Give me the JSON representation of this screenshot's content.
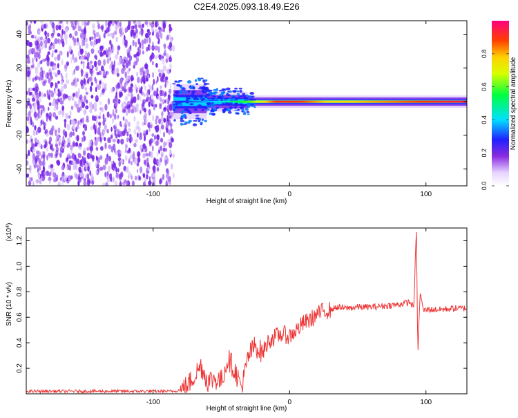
{
  "title": "C2E4.2025.093.18.49.E26",
  "chart_data": [
    {
      "type": "heatmap",
      "xlabel": "Height of straight line (km)",
      "ylabel": "Frequency (Hz)",
      "xlim": [
        -193,
        130
      ],
      "ylim": [
        -50,
        48
      ],
      "x_ticks": [
        -100,
        0,
        100
      ],
      "y_ticks": [
        -40,
        -20,
        0,
        20,
        40
      ],
      "colorbar": {
        "label": "Normalized spectral amplitude",
        "range": [
          0,
          1
        ],
        "ticks": [
          "0.0",
          "0.2",
          "0.4",
          "0.6",
          "0.8"
        ]
      },
      "features": [
        {
          "kind": "noise-field",
          "x_range": [
            -193,
            -85
          ],
          "amplitude": 0.1
        },
        {
          "kind": "ridge",
          "freq_hz": 0,
          "x_range": [
            -85,
            130
          ],
          "amplitude_ramp": [
            [
              -85,
              0.25
            ],
            [
              -55,
              0.4
            ],
            [
              -30,
              0.6
            ],
            [
              -10,
              0.9
            ],
            [
              5,
              0.9
            ],
            [
              30,
              0.75
            ],
            [
              130,
              0.95
            ]
          ]
        }
      ]
    },
    {
      "type": "line",
      "xlabel": "Height of straight line (km)",
      "ylabel": "SNR (10 * v/v)",
      "y_multiplier": "(x10^4)",
      "xlim": [
        -193,
        130
      ],
      "ylim": [
        0,
        1.3
      ],
      "x_ticks": [
        -100,
        0,
        100
      ],
      "y_ticks": [
        "0.2",
        "0.4",
        "0.6",
        "0.8",
        "1.0",
        "1.2"
      ],
      "series": [
        {
          "color": "#ee3333",
          "x": [
            -193,
            -150,
            -100,
            -85,
            -80,
            -75,
            -70,
            -65,
            -60,
            -55,
            -50,
            -45,
            -40,
            -35,
            -30,
            -25,
            -20,
            -15,
            -10,
            -5,
            0,
            5,
            10,
            15,
            20,
            25,
            30,
            35,
            40,
            50,
            60,
            70,
            80,
            88,
            91,
            93,
            94,
            95,
            96,
            98,
            100,
            110,
            120,
            130
          ],
          "y": [
            0.02,
            0.02,
            0.02,
            0.02,
            0.03,
            0.06,
            0.14,
            0.22,
            0.1,
            0.12,
            0.1,
            0.28,
            0.18,
            0.05,
            0.3,
            0.38,
            0.32,
            0.42,
            0.45,
            0.47,
            0.45,
            0.5,
            0.55,
            0.58,
            0.62,
            0.65,
            0.66,
            0.68,
            0.67,
            0.68,
            0.68,
            0.69,
            0.7,
            0.72,
            0.68,
            1.28,
            0.3,
            0.62,
            0.8,
            0.65,
            0.66,
            0.66,
            0.67,
            0.67
          ]
        }
      ]
    }
  ]
}
